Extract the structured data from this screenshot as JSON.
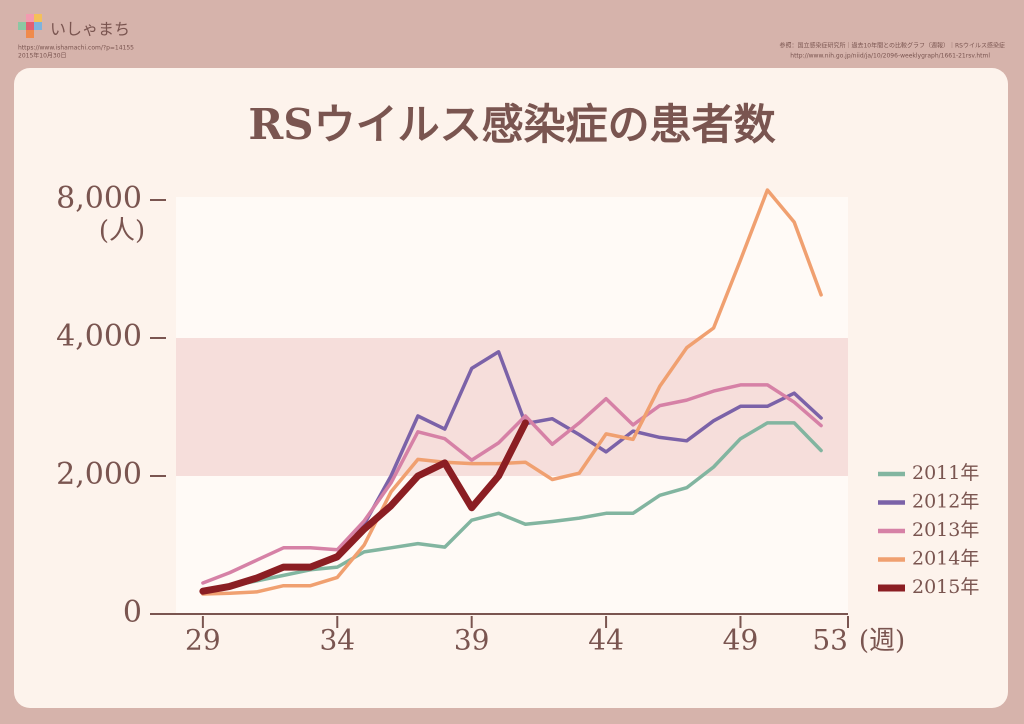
{
  "header": {
    "logo": "いしゃまち",
    "url": "https://www.ishamachi.com/?p=14155",
    "date": "2015年10月30日",
    "source": "参照：国立感染症研究所｜過去10年間との比較グラフ（週報）｜RSウイルス感染症",
    "source_url": "http://www.nih.go.jp/niid/ja/10/2096-weeklygraph/1661-21rsv.html"
  },
  "chart_data": {
    "type": "line",
    "title": "RSウイルス感染症の患者数",
    "y_label": "(人)",
    "x_label": "(週)",
    "x": [
      29,
      30,
      31,
      32,
      33,
      34,
      35,
      36,
      37,
      38,
      39,
      40,
      41,
      42,
      43,
      44,
      45,
      46,
      47,
      48,
      49,
      50,
      51,
      52
    ],
    "xlim": [
      28,
      53
    ],
    "xticks": [
      29,
      34,
      39,
      44,
      49,
      53
    ],
    "ylim": [
      0,
      8000
    ],
    "yticks": [
      0,
      {
        "value": 2000,
        "label": "2,000"
      },
      {
        "value": 4000,
        "label": "4,000"
      },
      {
        "value": 8000,
        "label": "8,000"
      }
    ],
    "series": [
      {
        "name": "2011年",
        "color": "#82b5a0",
        "values": [
          320,
          400,
          480,
          560,
          640,
          680,
          900,
          960,
          1020,
          970,
          1360,
          1460,
          1300,
          1340,
          1390,
          1460,
          1460,
          1720,
          1830,
          2130,
          2540,
          2770,
          2770,
          2370
        ]
      },
      {
        "name": "2012年",
        "color": "#7b62a8",
        "values": [
          330,
          420,
          520,
          680,
          680,
          800,
          1300,
          2000,
          2870,
          2680,
          3560,
          3800,
          2760,
          2830,
          2600,
          2350,
          2650,
          2560,
          2510,
          2800,
          3010,
          3010,
          3200,
          2840
        ]
      },
      {
        "name": "2013年",
        "color": "#d681a6",
        "values": [
          450,
          600,
          780,
          960,
          960,
          930,
          1350,
          1900,
          2640,
          2540,
          2230,
          2480,
          2870,
          2460,
          2770,
          3120,
          2740,
          3020,
          3100,
          3230,
          3320,
          3320,
          3070,
          2730
        ]
      },
      {
        "name": "2014年",
        "color": "#f0a070",
        "values": [
          290,
          300,
          320,
          410,
          410,
          530,
          1000,
          1770,
          2240,
          2200,
          2180,
          2180,
          2200,
          1950,
          2040,
          2610,
          2530,
          3300,
          3860,
          4290,
          6260,
          8290,
          7360,
          5250
        ]
      },
      {
        "name": "2015年",
        "color": "#8b1e23",
        "values": [
          330,
          400,
          520,
          680,
          680,
          830,
          1230,
          1570,
          2000,
          2190,
          1540,
          2000,
          2770,
          null,
          null,
          null,
          null,
          null,
          null,
          null,
          null,
          null,
          null,
          null
        ]
      }
    ]
  }
}
